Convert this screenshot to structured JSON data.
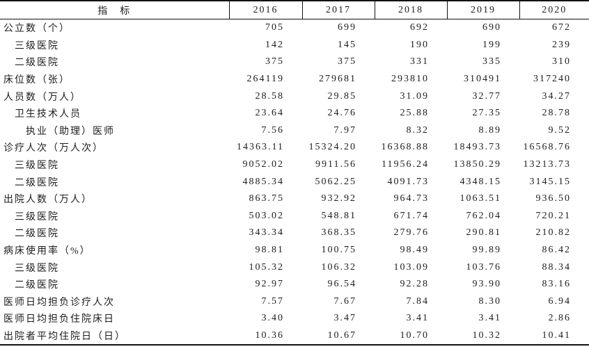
{
  "table": {
    "header": {
      "indicator": "指　标",
      "years": [
        "2016",
        "2017",
        "2018",
        "2019",
        "2020"
      ]
    },
    "rows": [
      {
        "label": "公立数（个）",
        "indent": 0,
        "values": [
          "705",
          "699",
          "692",
          "690",
          "672"
        ]
      },
      {
        "label": "三级医院",
        "indent": 1,
        "values": [
          "142",
          "145",
          "190",
          "199",
          "239"
        ]
      },
      {
        "label": "二级医院",
        "indent": 1,
        "values": [
          "375",
          "375",
          "331",
          "335",
          "310"
        ]
      },
      {
        "label": "床位数（张）",
        "indent": 0,
        "values": [
          "264119",
          "279681",
          "293810",
          "310491",
          "317240"
        ]
      },
      {
        "label": "人员数（万人）",
        "indent": 0,
        "values": [
          "28.58",
          "29.85",
          "31.09",
          "32.77",
          "34.27"
        ]
      },
      {
        "label": "卫生技术人员",
        "indent": 1,
        "values": [
          "23.64",
          "24.76",
          "25.88",
          "27.35",
          "28.78"
        ]
      },
      {
        "label": "执业（助理）医师",
        "indent": 2,
        "values": [
          "7.56",
          "7.97",
          "8.32",
          "8.89",
          "9.52"
        ]
      },
      {
        "label": "诊疗人次（万人次）",
        "indent": 0,
        "values": [
          "14363.11",
          "15324.20",
          "16368.88",
          "18493.73",
          "16568.76"
        ]
      },
      {
        "label": "三级医院",
        "indent": 1,
        "values": [
          "9052.02",
          "9911.56",
          "11956.24",
          "13850.29",
          "13213.73"
        ]
      },
      {
        "label": "二级医院",
        "indent": 1,
        "values": [
          "4885.34",
          "5062.25",
          "4091.73",
          "4348.15",
          "3145.15"
        ]
      },
      {
        "label": "出院人数（万人）",
        "indent": 0,
        "values": [
          "863.75",
          "932.92",
          "964.73",
          "1063.51",
          "936.50"
        ]
      },
      {
        "label": "三级医院",
        "indent": 1,
        "values": [
          "503.02",
          "548.81",
          "671.74",
          "762.04",
          "720.21"
        ]
      },
      {
        "label": "二级医院",
        "indent": 1,
        "values": [
          "343.34",
          "368.35",
          "279.76",
          "290.81",
          "210.82"
        ]
      },
      {
        "label": "病床使用率（%）",
        "indent": 0,
        "values": [
          "98.81",
          "100.75",
          "98.49",
          "99.89",
          "86.42"
        ]
      },
      {
        "label": "三级医院",
        "indent": 1,
        "values": [
          "105.32",
          "106.32",
          "103.09",
          "103.76",
          "88.34"
        ]
      },
      {
        "label": "二级医院",
        "indent": 1,
        "values": [
          "92.97",
          "96.54",
          "92.28",
          "93.90",
          "83.16"
        ]
      },
      {
        "label": "医师日均担负诊疗人次",
        "indent": 0,
        "values": [
          "7.57",
          "7.67",
          "7.84",
          "8.30",
          "6.94"
        ]
      },
      {
        "label": "医师日均担负住院床日",
        "indent": 0,
        "values": [
          "3.40",
          "3.47",
          "3.41",
          "3.41",
          "2.86"
        ]
      },
      {
        "label": "出院者平均住院日（日）",
        "indent": 0,
        "values": [
          "10.36",
          "10.67",
          "10.70",
          "10.32",
          "10.41"
        ]
      }
    ]
  }
}
